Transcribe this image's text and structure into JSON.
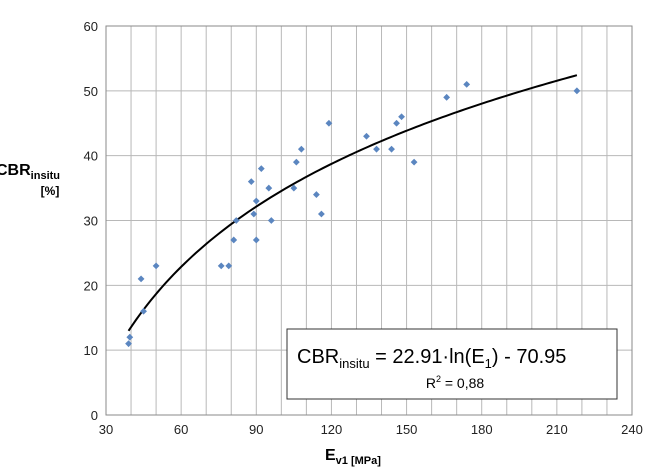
{
  "chart_data": {
    "type": "scatter",
    "xlabel": {
      "main": "E",
      "sub": "v1",
      "unit": " [MPa]"
    },
    "ylabel": {
      "main": "CBR",
      "sub": "insitu",
      "unit": "[%]"
    },
    "xlim": [
      30,
      240
    ],
    "ylim": [
      0,
      60
    ],
    "xticks": [
      30,
      60,
      90,
      120,
      150,
      180,
      210,
      240
    ],
    "yticks": [
      0,
      10,
      20,
      30,
      40,
      50,
      60
    ],
    "x_minor_step": 10,
    "grid": true,
    "point_color": "#5b86c0",
    "curve_color": "#000000",
    "points": [
      {
        "x": 39,
        "y": 11
      },
      {
        "x": 39.5,
        "y": 12
      },
      {
        "x": 44,
        "y": 21
      },
      {
        "x": 45,
        "y": 16
      },
      {
        "x": 50,
        "y": 23
      },
      {
        "x": 76,
        "y": 23
      },
      {
        "x": 79,
        "y": 23
      },
      {
        "x": 81,
        "y": 27
      },
      {
        "x": 82,
        "y": 30
      },
      {
        "x": 88,
        "y": 36
      },
      {
        "x": 89,
        "y": 31
      },
      {
        "x": 90,
        "y": 33
      },
      {
        "x": 90,
        "y": 27
      },
      {
        "x": 92,
        "y": 38
      },
      {
        "x": 95,
        "y": 35
      },
      {
        "x": 96,
        "y": 30
      },
      {
        "x": 105,
        "y": 35
      },
      {
        "x": 106,
        "y": 39
      },
      {
        "x": 108,
        "y": 41
      },
      {
        "x": 114,
        "y": 34
      },
      {
        "x": 116,
        "y": 31
      },
      {
        "x": 119,
        "y": 45
      },
      {
        "x": 134,
        "y": 43
      },
      {
        "x": 138,
        "y": 41
      },
      {
        "x": 144,
        "y": 41
      },
      {
        "x": 146,
        "y": 45
      },
      {
        "x": 148,
        "y": 46
      },
      {
        "x": 153,
        "y": 39
      },
      {
        "x": 166,
        "y": 49
      },
      {
        "x": 174,
        "y": 51
      },
      {
        "x": 218,
        "y": 50
      }
    ],
    "trendline": {
      "type": "logarithmic",
      "a": 22.91,
      "b": -70.95,
      "x_range": [
        39,
        218
      ]
    },
    "annotation": {
      "equation_main": "CBR",
      "equation_sub": "insitu",
      "equation_rest_1": " = 22.91·ln(E",
      "equation_sub2": "1",
      "equation_rest_2": ") - 70.95",
      "r2_prefix": "R",
      "r2_sup": "2",
      "r2_rest": " = 0,88"
    }
  }
}
